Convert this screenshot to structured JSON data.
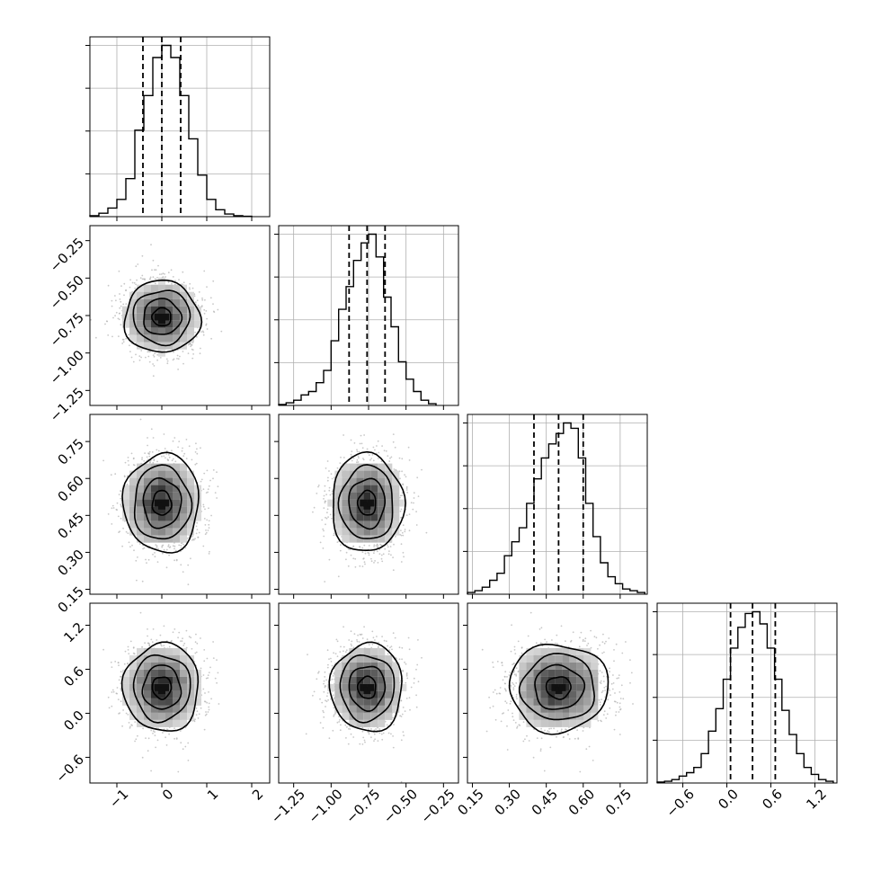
{
  "chart_data": {
    "type": "corner",
    "parameters": 4,
    "quantile_lines": [
      0.16,
      0.5,
      0.84
    ],
    "histogram_color": "#000000",
    "density_color": "#555555",
    "scatter_color": "#b0b0b0",
    "grid": true,
    "axes": [
      {
        "range": [
          -1.6,
          2.4
        ],
        "ticks": [
          -1,
          0,
          1,
          2
        ],
        "tick_labels": [
          "−1",
          "0",
          "1",
          "2"
        ],
        "median": 0.0,
        "sigma": 0.42
      },
      {
        "range": [
          -1.35,
          -0.15
        ],
        "ticks": [
          -1.25,
          -1.0,
          -0.75,
          -0.5,
          -0.25
        ],
        "tick_labels": [
          "−1.25",
          "−1.00",
          "−0.75",
          "−0.50",
          "−0.25"
        ],
        "median": -0.76,
        "sigma": 0.12
      },
      {
        "range": [
          0.13,
          0.86
        ],
        "ticks": [
          0.15,
          0.3,
          0.45,
          0.6,
          0.75
        ],
        "tick_labels": [
          "0.15",
          "0.30",
          "0.45",
          "0.60",
          "0.75"
        ],
        "median": 0.5,
        "sigma": 0.1
      },
      {
        "range": [
          -0.95,
          1.5
        ],
        "ticks": [
          -0.6,
          0.0,
          0.6,
          1.2
        ],
        "tick_labels": [
          "−0.6",
          "0.0",
          "0.6",
          "1.2"
        ],
        "median": 0.35,
        "sigma": 0.3
      }
    ],
    "marginals": [
      {
        "param": 0,
        "quantiles": [
          -0.42,
          0.0,
          0.42
        ],
        "bin_edges": [
          -1.6,
          -1.4,
          -1.2,
          -1.0,
          -0.8,
          -0.6,
          -0.4,
          -0.2,
          0.0,
          0.2,
          0.4,
          0.6,
          0.8,
          1.0,
          1.2,
          1.4,
          1.6,
          1.8,
          2.0
        ],
        "counts": [
          0.005,
          0.02,
          0.05,
          0.1,
          0.22,
          0.5,
          0.7,
          0.92,
          0.99,
          0.92,
          0.7,
          0.45,
          0.24,
          0.1,
          0.04,
          0.015,
          0.005,
          0.002
        ]
      },
      {
        "param": 1,
        "quantiles": [
          -0.88,
          -0.76,
          -0.64
        ],
        "bin_edges": [
          -1.35,
          -1.3,
          -1.25,
          -1.2,
          -1.15,
          -1.1,
          -1.05,
          -1.0,
          -0.95,
          -0.9,
          -0.85,
          -0.8,
          -0.75,
          -0.7,
          -0.65,
          -0.6,
          -0.55,
          -0.5,
          -0.45,
          -0.4,
          -0.35,
          -0.3
        ],
        "counts": [
          0.005,
          0.015,
          0.03,
          0.06,
          0.08,
          0.13,
          0.2,
          0.37,
          0.55,
          0.68,
          0.83,
          0.93,
          0.98,
          0.85,
          0.62,
          0.45,
          0.25,
          0.15,
          0.08,
          0.03,
          0.01
        ]
      },
      {
        "param": 2,
        "quantiles": [
          0.4,
          0.5,
          0.6
        ],
        "bin_edges": [
          0.13,
          0.16,
          0.19,
          0.22,
          0.25,
          0.28,
          0.31,
          0.34,
          0.37,
          0.4,
          0.43,
          0.46,
          0.49,
          0.52,
          0.55,
          0.58,
          0.61,
          0.64,
          0.67,
          0.7,
          0.73,
          0.76,
          0.79,
          0.82,
          0.85
        ],
        "counts": [
          0.01,
          0.02,
          0.04,
          0.08,
          0.12,
          0.22,
          0.3,
          0.38,
          0.52,
          0.66,
          0.78,
          0.86,
          0.92,
          0.98,
          0.95,
          0.78,
          0.52,
          0.33,
          0.18,
          0.1,
          0.06,
          0.03,
          0.02,
          0.01
        ]
      },
      {
        "param": 3,
        "quantiles": [
          0.05,
          0.35,
          0.66
        ],
        "bin_edges": [
          -0.95,
          -0.85,
          -0.75,
          -0.65,
          -0.55,
          -0.45,
          -0.35,
          -0.25,
          -0.15,
          -0.05,
          0.05,
          0.15,
          0.25,
          0.35,
          0.45,
          0.55,
          0.65,
          0.75,
          0.85,
          0.95,
          1.05,
          1.15,
          1.25,
          1.35,
          1.45
        ],
        "counts": [
          0.005,
          0.01,
          0.02,
          0.04,
          0.06,
          0.09,
          0.17,
          0.3,
          0.43,
          0.6,
          0.78,
          0.9,
          0.98,
          0.99,
          0.92,
          0.78,
          0.6,
          0.42,
          0.28,
          0.17,
          0.09,
          0.05,
          0.02,
          0.01
        ]
      }
    ],
    "joint": [
      {
        "row": 1,
        "col": 0,
        "center": [
          0.0,
          -0.76
        ],
        "spread": [
          0.42,
          0.12
        ],
        "contour_levels": [
          0.5,
          1.0,
          1.5,
          2.0
        ],
        "peak_cells": 3
      },
      {
        "row": 2,
        "col": 0,
        "center": [
          0.0,
          0.5
        ],
        "spread": [
          0.42,
          0.1
        ],
        "contour_levels": [
          0.5,
          1.0,
          1.5,
          2.0
        ],
        "peak_cells": 3
      },
      {
        "row": 2,
        "col": 1,
        "center": [
          -0.76,
          0.5
        ],
        "spread": [
          0.12,
          0.1
        ],
        "contour_levels": [
          0.5,
          1.0,
          1.5,
          2.0
        ],
        "peak_cells": 3
      },
      {
        "row": 3,
        "col": 0,
        "center": [
          0.0,
          0.35
        ],
        "spread": [
          0.42,
          0.3
        ],
        "contour_levels": [
          0.5,
          1.0,
          1.5,
          2.0
        ],
        "peak_cells": 3
      },
      {
        "row": 3,
        "col": 1,
        "center": [
          -0.76,
          0.35
        ],
        "spread": [
          0.12,
          0.3
        ],
        "contour_levels": [
          0.5,
          1.0,
          1.5,
          2.0
        ],
        "peak_cells": 3
      },
      {
        "row": 3,
        "col": 2,
        "center": [
          0.5,
          0.35
        ],
        "spread": [
          0.1,
          0.3
        ],
        "contour_levels": [
          0.5,
          1.0,
          1.5,
          2.0
        ],
        "peak_cells": 3
      }
    ]
  }
}
